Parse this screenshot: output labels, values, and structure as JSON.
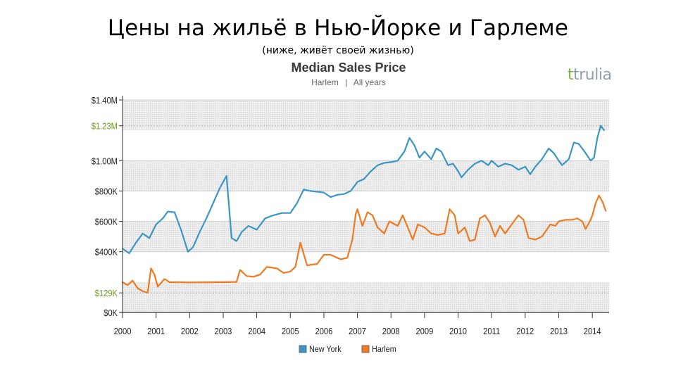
{
  "slide": {
    "title": "Цены на жильё в Нью-Йорке и Гарлеме",
    "subtitle": "(ниже, живёт своей жизнью)"
  },
  "logo": {
    "text": "trulia",
    "mark": "t",
    "color": "#7ab648"
  },
  "colors": {
    "new_york": "#3c96c5",
    "harlem": "#f07a21",
    "highlight_label": "#6b9a1f",
    "band": "#e9e9e9"
  },
  "chart_data": {
    "type": "line",
    "title": "Median Sales Price",
    "subtitle_parts": [
      "Harlem",
      "|",
      "All years"
    ],
    "xlabel": "",
    "ylabel": "",
    "xlim": [
      2000,
      2014.5
    ],
    "ylim": [
      0,
      1400000
    ],
    "x_ticks": [
      {
        "value": 2000,
        "label": "2000"
      },
      {
        "value": 2001,
        "label": "2001"
      },
      {
        "value": 2002,
        "label": "2002"
      },
      {
        "value": 2003,
        "label": "2003"
      },
      {
        "value": 2004,
        "label": "2004"
      },
      {
        "value": 2005,
        "label": "2005"
      },
      {
        "value": 2006,
        "label": "2006"
      },
      {
        "value": 2007,
        "label": "2007"
      },
      {
        "value": 2008,
        "label": "2008"
      },
      {
        "value": 2009,
        "label": "2009"
      },
      {
        "value": 2010,
        "label": "2010"
      },
      {
        "value": 2011,
        "label": "2011"
      },
      {
        "value": 2012,
        "label": "2012"
      },
      {
        "value": 2013,
        "label": "2013"
      },
      {
        "value": 2014,
        "label": "2014"
      }
    ],
    "y_ticks": [
      {
        "value": 0,
        "label": "$0K",
        "highlight": false
      },
      {
        "value": 129000,
        "label": "$129K",
        "highlight": true
      },
      {
        "value": 400000,
        "label": "$400K",
        "highlight": false
      },
      {
        "value": 600000,
        "label": "$600K",
        "highlight": false
      },
      {
        "value": 800000,
        "label": "$800K",
        "highlight": false
      },
      {
        "value": 1000000,
        "label": "$1.00M",
        "highlight": false
      },
      {
        "value": 1230000,
        "label": "$1.23M",
        "highlight": true
      },
      {
        "value": 1400000,
        "label": "$1.40M",
        "highlight": false
      }
    ],
    "bands": [
      [
        0,
        200000
      ],
      [
        400000,
        600000
      ],
      [
        800000,
        1000000
      ],
      [
        1200000,
        1400000
      ]
    ],
    "legend": [
      {
        "name": "New York",
        "color": "#3c96c5"
      },
      {
        "name": "Harlem",
        "color": "#f07a21"
      }
    ],
    "series": [
      {
        "name": "New York",
        "color": "#3c96c5",
        "points": [
          [
            2000.0,
            420000
          ],
          [
            2000.2,
            390000
          ],
          [
            2000.4,
            460000
          ],
          [
            2000.6,
            520000
          ],
          [
            2000.8,
            490000
          ],
          [
            2001.0,
            580000
          ],
          [
            2001.2,
            620000
          ],
          [
            2001.35,
            665000
          ],
          [
            2001.55,
            660000
          ],
          [
            2001.75,
            540000
          ],
          [
            2001.95,
            400000
          ],
          [
            2002.1,
            430000
          ],
          [
            2002.3,
            530000
          ],
          [
            2002.5,
            620000
          ],
          [
            2002.7,
            720000
          ],
          [
            2002.9,
            820000
          ],
          [
            2003.1,
            900000
          ],
          [
            2003.25,
            490000
          ],
          [
            2003.4,
            470000
          ],
          [
            2003.55,
            530000
          ],
          [
            2003.75,
            570000
          ],
          [
            2004.0,
            545000
          ],
          [
            2004.25,
            620000
          ],
          [
            2004.5,
            640000
          ],
          [
            2004.75,
            655000
          ],
          [
            2005.0,
            655000
          ],
          [
            2005.2,
            720000
          ],
          [
            2005.4,
            810000
          ],
          [
            2005.6,
            800000
          ],
          [
            2005.8,
            795000
          ],
          [
            2006.0,
            790000
          ],
          [
            2006.2,
            760000
          ],
          [
            2006.4,
            775000
          ],
          [
            2006.6,
            780000
          ],
          [
            2006.8,
            800000
          ],
          [
            2007.0,
            860000
          ],
          [
            2007.2,
            880000
          ],
          [
            2007.4,
            930000
          ],
          [
            2007.6,
            970000
          ],
          [
            2007.8,
            985000
          ],
          [
            2008.0,
            990000
          ],
          [
            2008.2,
            1000000
          ],
          [
            2008.4,
            1060000
          ],
          [
            2008.55,
            1150000
          ],
          [
            2008.7,
            1100000
          ],
          [
            2008.85,
            1020000
          ],
          [
            2009.0,
            1060000
          ],
          [
            2009.2,
            1010000
          ],
          [
            2009.35,
            1080000
          ],
          [
            2009.5,
            1060000
          ],
          [
            2009.7,
            970000
          ],
          [
            2009.85,
            980000
          ],
          [
            2010.0,
            930000
          ],
          [
            2010.1,
            890000
          ],
          [
            2010.3,
            940000
          ],
          [
            2010.5,
            980000
          ],
          [
            2010.7,
            1000000
          ],
          [
            2010.9,
            970000
          ],
          [
            2011.0,
            1000000
          ],
          [
            2011.2,
            960000
          ],
          [
            2011.4,
            980000
          ],
          [
            2011.6,
            970000
          ],
          [
            2011.8,
            940000
          ],
          [
            2012.0,
            960000
          ],
          [
            2012.15,
            910000
          ],
          [
            2012.3,
            960000
          ],
          [
            2012.5,
            1010000
          ],
          [
            2012.7,
            1080000
          ],
          [
            2012.85,
            1050000
          ],
          [
            2013.0,
            1000000
          ],
          [
            2013.1,
            970000
          ],
          [
            2013.3,
            1010000
          ],
          [
            2013.45,
            1120000
          ],
          [
            2013.6,
            1110000
          ],
          [
            2013.8,
            1050000
          ],
          [
            2013.95,
            1000000
          ],
          [
            2014.05,
            1020000
          ],
          [
            2014.15,
            1150000
          ],
          [
            2014.25,
            1230000
          ],
          [
            2014.35,
            1200000
          ]
        ]
      },
      {
        "name": "Harlem",
        "color": "#f07a21",
        "points": [
          [
            2000.0,
            200000
          ],
          [
            2000.15,
            180000
          ],
          [
            2000.3,
            210000
          ],
          [
            2000.45,
            160000
          ],
          [
            2000.6,
            140000
          ],
          [
            2000.75,
            130000
          ],
          [
            2000.85,
            290000
          ],
          [
            2000.95,
            250000
          ],
          [
            2001.05,
            170000
          ],
          [
            2001.25,
            220000
          ],
          [
            2001.4,
            200000
          ],
          [
            2002.0,
            198000
          ],
          [
            2002.5,
            199000
          ],
          [
            2003.0,
            200000
          ],
          [
            2003.4,
            201000
          ],
          [
            2003.5,
            280000
          ],
          [
            2003.7,
            240000
          ],
          [
            2003.9,
            235000
          ],
          [
            2004.1,
            250000
          ],
          [
            2004.3,
            300000
          ],
          [
            2004.6,
            290000
          ],
          [
            2004.8,
            260000
          ],
          [
            2005.0,
            270000
          ],
          [
            2005.15,
            300000
          ],
          [
            2005.3,
            460000
          ],
          [
            2005.5,
            310000
          ],
          [
            2005.8,
            320000
          ],
          [
            2006.0,
            380000
          ],
          [
            2006.2,
            380000
          ],
          [
            2006.5,
            350000
          ],
          [
            2006.7,
            360000
          ],
          [
            2006.85,
            480000
          ],
          [
            2006.95,
            650000
          ],
          [
            2007.0,
            680000
          ],
          [
            2007.15,
            570000
          ],
          [
            2007.3,
            660000
          ],
          [
            2007.45,
            640000
          ],
          [
            2007.6,
            560000
          ],
          [
            2007.8,
            520000
          ],
          [
            2007.95,
            600000
          ],
          [
            2008.2,
            570000
          ],
          [
            2008.35,
            640000
          ],
          [
            2008.5,
            560000
          ],
          [
            2008.65,
            480000
          ],
          [
            2008.8,
            580000
          ],
          [
            2009.0,
            560000
          ],
          [
            2009.2,
            520000
          ],
          [
            2009.4,
            510000
          ],
          [
            2009.6,
            520000
          ],
          [
            2009.75,
            680000
          ],
          [
            2009.9,
            640000
          ],
          [
            2010.0,
            520000
          ],
          [
            2010.2,
            560000
          ],
          [
            2010.35,
            470000
          ],
          [
            2010.5,
            480000
          ],
          [
            2010.65,
            620000
          ],
          [
            2010.8,
            640000
          ],
          [
            2010.95,
            590000
          ],
          [
            2011.1,
            500000
          ],
          [
            2011.25,
            570000
          ],
          [
            2011.4,
            520000
          ],
          [
            2011.6,
            580000
          ],
          [
            2011.8,
            640000
          ],
          [
            2011.95,
            610000
          ],
          [
            2012.1,
            490000
          ],
          [
            2012.3,
            480000
          ],
          [
            2012.5,
            500000
          ],
          [
            2012.75,
            580000
          ],
          [
            2012.9,
            570000
          ],
          [
            2013.0,
            600000
          ],
          [
            2013.2,
            610000
          ],
          [
            2013.4,
            610000
          ],
          [
            2013.55,
            620000
          ],
          [
            2013.7,
            600000
          ],
          [
            2013.8,
            550000
          ],
          [
            2013.95,
            610000
          ],
          [
            2014.0,
            640000
          ],
          [
            2014.1,
            720000
          ],
          [
            2014.2,
            770000
          ],
          [
            2014.3,
            730000
          ],
          [
            2014.4,
            670000
          ]
        ]
      }
    ]
  }
}
